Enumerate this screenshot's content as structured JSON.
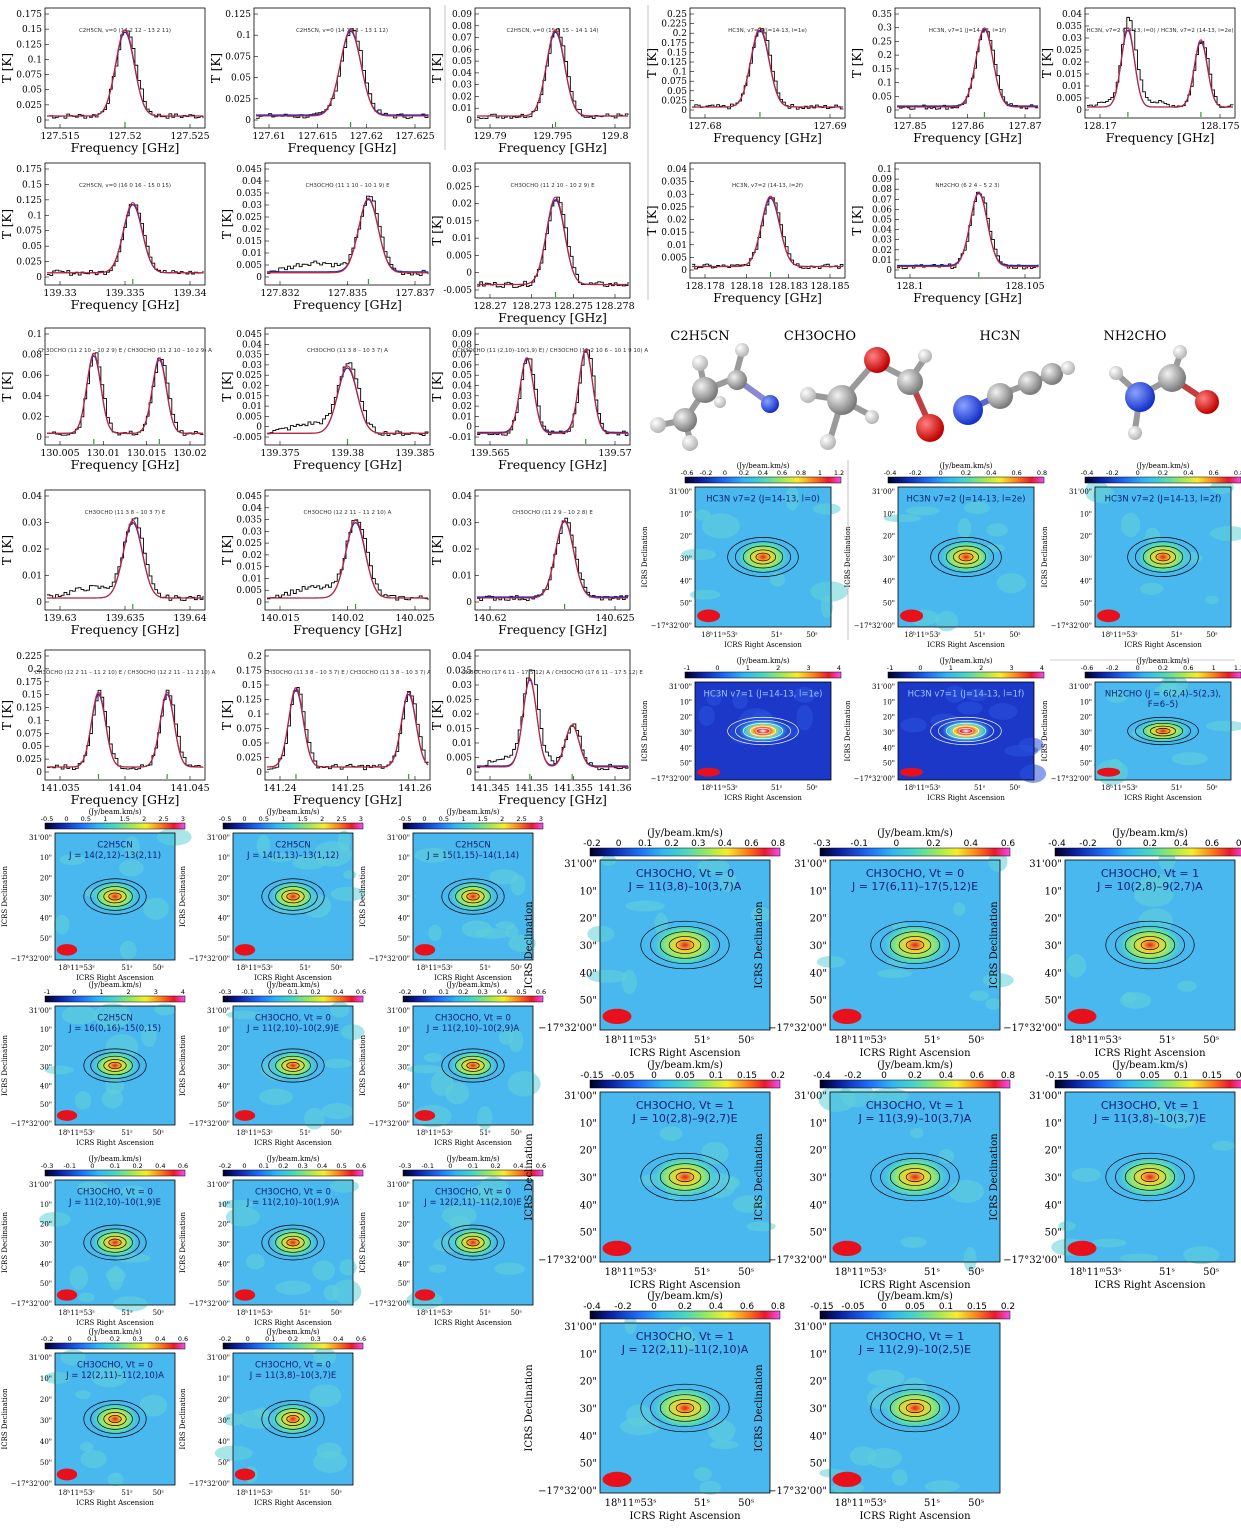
{
  "axes": {
    "freq_label": "Frequency [GHz]",
    "temp_label": "T [K]",
    "dec_label": "ICRS Declination",
    "ra_label": "ICRS Right Ascension",
    "cbar_unit": "(Jy/beam.km/s)",
    "dec_ticks": [
      "31'00\"",
      "10\"",
      "20\"",
      "30\"",
      "40\"",
      "50\"",
      "−17°32'00\""
    ],
    "ra_ticks": [
      "18ʰ11ᵐ53ˢ",
      "51ˢ",
      "50ˢ"
    ]
  },
  "molecules": [
    {
      "label": "C2H5CN",
      "icon": "c2h5cn-ball-and-stick"
    },
    {
      "label": "CH3OCHO",
      "icon": "ch3ocho-ball-and-stick"
    },
    {
      "label": "HC3N",
      "icon": "hc3n-ball-and-stick"
    },
    {
      "label": "NH2CHO",
      "icon": "nh2cho-ball-and-stick"
    }
  ],
  "colors": {
    "observed": "#000000",
    "lte_model": "#d42020",
    "fit": "#1a2bd4",
    "marker": "#2ca02c",
    "beam": "#e8101a"
  },
  "spectra": [
    {
      "title": "C2H5CN, v=0 (14 2 12 – 13 2 11)",
      "yticks": [
        "0.175",
        "0.15",
        "0.125",
        "0.1",
        "0.075",
        "0.05",
        "0.025",
        "0"
      ],
      "xticks": [
        "127.515",
        "127.52",
        "127.525"
      ]
    },
    {
      "title": "C2H5CN, v=0 (14 1 13 – 13 1 12)",
      "yticks": [
        "0.125",
        "0.1",
        "0.075",
        "0.05",
        "0.025",
        "0"
      ],
      "xticks": [
        "127.61",
        "127.615",
        "127.62",
        "127.625"
      ]
    },
    {
      "title": "C2H5CN, v=0 (15 1 15 – 14 1 14)",
      "yticks": [
        "0.09",
        "0.08",
        "0.07",
        "0.06",
        "0.05",
        "0.04",
        "0.03",
        "0.02",
        "0.01",
        "0"
      ],
      "xticks": [
        "129.79",
        "129.795",
        "129.8"
      ]
    },
    {
      "title": "HC3N, v7=1 (J=14-13, l=1e)",
      "yticks": [
        "0.25",
        "0.225",
        "0.2",
        "0.175",
        "0.15",
        "0.125",
        "0.1",
        "0.075",
        "0.05",
        "0.025",
        "0"
      ],
      "xticks": [
        "127.68",
        "127.69"
      ]
    },
    {
      "title": "HC3N, v7=1 (J=14-13, l=1f)",
      "yticks": [
        "0.35",
        "0.3",
        "0.25",
        "0.2",
        "0.15",
        "0.1",
        "0.05",
        "0"
      ],
      "xticks": [
        "127.85",
        "127.86",
        "127.87"
      ]
    },
    {
      "title": "HC3N, v7=2 (14-13, l=0) / HC3N, v7=2 (14-13, l=2e)",
      "yticks": [
        "0.04",
        "0.035",
        "0.03",
        "0.025",
        "0.02",
        "0.015",
        "0.01",
        "0.005",
        "0"
      ],
      "xticks": [
        "128.17",
        "128.175"
      ]
    },
    {
      "title": "C2H5CN, v=0 (16 0 16 – 15 0 15)",
      "yticks": [
        "0.175",
        "0.15",
        "0.125",
        "0.1",
        "0.075",
        "0.05",
        "0.025",
        "0"
      ],
      "xticks": [
        "139.33",
        "139.335",
        "139.34"
      ]
    },
    {
      "title": "CH3OCHO (11 1 10 – 10 1 9) E",
      "yticks": [
        "0.045",
        "0.04",
        "0.035",
        "0.03",
        "0.025",
        "0.02",
        "0.015",
        "0.01",
        "0.005",
        "0"
      ],
      "xticks": [
        "127.832",
        "127.835",
        "127.837"
      ]
    },
    {
      "title": "CH3OCHO (11 2 10 – 10 2 9) E",
      "yticks": [
        "0.03",
        "0.025",
        "0.02",
        "0.015",
        "0.01",
        "0.005",
        "0",
        "-0.005"
      ],
      "xticks": [
        "128.27",
        "128.273",
        "128.275",
        "128.278"
      ]
    },
    {
      "title": "HC3N, v7=2 (14-13, l=2f)",
      "yticks": [
        "0.04",
        "0.035",
        "0.03",
        "0.025",
        "0.02",
        "0.015",
        "0.01",
        "0.005",
        "0"
      ],
      "xticks": [
        "128.178",
        "128.18",
        "128.183",
        "128.185"
      ]
    },
    {
      "title": "NH2CHO (6 2 4 – 5 2 3)",
      "yticks": [
        "0.1",
        "0.09",
        "0.08",
        "0.07",
        "0.06",
        "0.05",
        "0.04",
        "0.03",
        "0.02",
        "0.01",
        "0"
      ],
      "xticks": [
        "128.1",
        "128.105"
      ]
    },
    {
      "title": "CH3OCHO (11 2 10 – 10 2 9) E / CH3OCHO (11 2 10 – 10 2 9) A",
      "yticks": [
        "0.1",
        "0.08",
        "0.06",
        "0.04",
        "0.02",
        "0"
      ],
      "xticks": [
        "130.005",
        "130.01",
        "130.015",
        "130.02"
      ]
    },
    {
      "title": "CH3OCHO (11 3 8 – 10 3 7) A",
      "yticks": [
        "0.045",
        "0.04",
        "0.035",
        "0.03",
        "0.025",
        "0.02",
        "0.015",
        "0.01",
        "0.005",
        "0",
        "-0.005"
      ],
      "xticks": [
        "139.375",
        "139.38",
        "139.385"
      ]
    },
    {
      "title": "CH3OCHO (11 (2,10)–10(1,9) E) / CH3OCHO (11 2 10 6 – 10 1 9 10) A",
      "yticks": [
        "0.09",
        "0.08",
        "0.07",
        "0.06",
        "0.05",
        "0.04",
        "0.03",
        "0.02",
        "0.01",
        "0",
        "-0.01"
      ],
      "xticks": [
        "139.565",
        "139.57"
      ]
    },
    {
      "title": "CH3OCHO (11 3 8 – 10 3 7) E",
      "yticks": [
        "0.04",
        "0.03",
        "0.02",
        "0.01",
        "0"
      ],
      "xticks": [
        "139.63",
        "139.635",
        "139.64"
      ]
    },
    {
      "title": "CH3OCHO (12 2 11 – 11 2 10) A",
      "yticks": [
        "0.045",
        "0.04",
        "0.035",
        "0.03",
        "0.025",
        "0.02",
        "0.015",
        "0.01",
        "0.005",
        "0"
      ],
      "xticks": [
        "140.015",
        "140.02",
        "140.025"
      ]
    },
    {
      "title": "CH3OCHO (11 2 9 – 10 2 8) E",
      "yticks": [
        "0.04",
        "0.03",
        "0.02",
        "0.01",
        "0"
      ],
      "xticks": [
        "140.62",
        "140.625"
      ]
    },
    {
      "title": "CH3OCHO (12 2 11 – 11 2 10) E / CH3OCHO (12 2 11 – 11 2 10) A",
      "yticks": [
        "0.225",
        "0.2",
        "0.175",
        "0.15",
        "0.125",
        "0.1",
        "0.075",
        "0.05",
        "0.025",
        "0"
      ],
      "xticks": [
        "141.035",
        "141.04",
        "141.045"
      ]
    },
    {
      "title": "CH3OCHO (11 3 8 – 10 3 7) E / CH3OCHO (11 3 8 – 10 3 7) A",
      "yticks": [
        "0.2",
        "0.175",
        "0.15",
        "0.125",
        "0.1",
        "0.075",
        "0.05",
        "0.025",
        "0"
      ],
      "xticks": [
        "141.24",
        "141.25",
        "141.26"
      ]
    },
    {
      "title": "CH3OCHO (17 6 11 – 17 5 12) A / CH3OCHO (17 6 11 – 17 5 12) E",
      "yticks": [
        "0.04",
        "0.035",
        "0.03",
        "0.025",
        "0.02",
        "0.015",
        "0.01",
        "0.005",
        "0"
      ],
      "xticks": [
        "141.345",
        "141.35",
        "141.355",
        "141.36"
      ]
    }
  ],
  "maps": [
    {
      "l1": "HC3N v7=2 (J=14-13, l=0)",
      "l2": "",
      "cbar": [
        "-0.6",
        "-0.2",
        "0",
        "0.2",
        "0.4",
        "0.6",
        "0.8",
        "1",
        "1.2"
      ],
      "bg": "light"
    },
    {
      "l1": "HC3N v7=2 (J=14-13, l=2e)",
      "l2": "",
      "cbar": [
        "-0.4",
        "-0.2",
        "0",
        "0.2",
        "0.4",
        "0.6",
        "0.8"
      ],
      "bg": "light"
    },
    {
      "l1": "HC3N v7=2 (J=14-13, l=2f)",
      "l2": "",
      "cbar": [
        "-0.4",
        "-0.2",
        "0",
        "0.2",
        "0.4",
        "0.6",
        "0.8"
      ],
      "bg": "light"
    },
    {
      "l1": "HC3N v7=1 (J=14-13, l=1e)",
      "l2": "",
      "cbar": [
        "-1",
        "0",
        "1",
        "2",
        "3",
        "4"
      ],
      "bg": "dark"
    },
    {
      "l1": "HC3N v7=1 (J=14-13, l=1f)",
      "l2": "",
      "cbar": [
        "-1",
        "0",
        "1",
        "2",
        "3",
        "4"
      ],
      "bg": "dark"
    },
    {
      "l1": "NH2CHO (J = 6(2,4)–5(2,3),",
      "l2": "F=6–5)",
      "cbar": [
        "-0.6",
        "-0.2",
        "0",
        "0.2",
        "0.6",
        "1",
        "1.2"
      ],
      "bg": "light"
    },
    {
      "l1": "C2H5CN",
      "l2": "J = 14(2,12)–13(2,11)",
      "cbar": [
        "-0.5",
        "0",
        "0.5",
        "1",
        "1.5",
        "2",
        "2.5",
        "3"
      ],
      "bg": "light"
    },
    {
      "l1": "C2H5CN",
      "l2": "J = 14(1,13)–13(1,12)",
      "cbar": [
        "-0.5",
        "0",
        "0.5",
        "1",
        "1.5",
        "2",
        "2.5",
        "3"
      ],
      "bg": "light"
    },
    {
      "l1": "C2H5CN",
      "l2": "J = 15(1,15)–14(1,14)",
      "cbar": [
        "-0.5",
        "0",
        "0.5",
        "1",
        "1.5",
        "2",
        "2.5",
        "3"
      ],
      "bg": "light"
    },
    {
      "l1": "C2H5CN",
      "l2": "J = 16(0,16)–15(0,15)",
      "cbar": [
        "-1",
        "0",
        "1",
        "2",
        "3",
        "4"
      ],
      "bg": "light"
    },
    {
      "l1": "CH3OCHO, Vt = 0",
      "l2": "J = 11(2,10)–10(2,9)E",
      "cbar": [
        "-0.3",
        "-0.1",
        "0",
        "0.1",
        "0.2",
        "0.4",
        "0.6"
      ],
      "bg": "light"
    },
    {
      "l1": "CH3OCHO, Vt = 0",
      "l2": "J = 11(2,10)–10(2,9)A",
      "cbar": [
        "-0.2",
        "0",
        "0.1",
        "0.2",
        "0.3",
        "0.4",
        "0.5",
        "0.6"
      ],
      "bg": "light"
    },
    {
      "l1": "CH3OCHO, Vt = 0",
      "l2": "J = 11(2,10)–10(1,9)E",
      "cbar": [
        "-0.3",
        "-0.1",
        "0",
        "0.1",
        "0.2",
        "0.4",
        "0.6"
      ],
      "bg": "light"
    },
    {
      "l1": "CH3OCHO, Vt = 0",
      "l2": "J = 11(2,10)–10(1,9)A",
      "cbar": [
        "-0.2",
        "0",
        "0.1",
        "0.2",
        "0.3",
        "0.4",
        "0.5",
        "0.6"
      ],
      "bg": "light"
    },
    {
      "l1": "CH3OCHO, Vt = 0",
      "l2": "J = 12(2,11)–11(2,10)E",
      "cbar": [
        "-0.3",
        "-0.1",
        "0",
        "0.1",
        "0.2",
        "0.4",
        "0.6"
      ],
      "bg": "light"
    },
    {
      "l1": "CH3OCHO, Vt = 0",
      "l2": "J = 12(2,11)–11(2,10)A",
      "cbar": [
        "-0.2",
        "0",
        "0.1",
        "0.2",
        "0.3",
        "0.4",
        "0.6"
      ],
      "bg": "light"
    },
    {
      "l1": "CH3OCHO, Vt = 0",
      "l2": "J = 11(3,8)–10(3,7)E",
      "cbar": [
        "-0.2",
        "0",
        "0.1",
        "0.2",
        "0.3",
        "0.4",
        "0.6"
      ],
      "bg": "light"
    },
    {
      "l1": "CH3OCHO, Vt = 0",
      "l2": "J = 11(3,8)–10(3,7)A",
      "cbar": [
        "-0.2",
        "0",
        "0.1",
        "0.2",
        "0.3",
        "0.4",
        "0.6",
        "0.8"
      ],
      "bg": "light"
    },
    {
      "l1": "CH3OCHO, Vt = 0",
      "l2": "J = 17(6,11)–17(5,12)E",
      "cbar": [
        "-0.3",
        "-0.1",
        "0",
        "0.2",
        "0.4",
        "0.6"
      ],
      "bg": "light"
    },
    {
      "l1": "CH3OCHO, Vt = 1",
      "l2": "J = 10(2,8)–9(2,7)A",
      "cbar": [
        "-0.4",
        "-0.2",
        "0",
        "0.2",
        "0.4",
        "0.6",
        "0.8"
      ],
      "bg": "light"
    },
    {
      "l1": "CH3OCHO, Vt = 1",
      "l2": "J = 10(2,8)–9(2,7)E",
      "cbar": [
        "-0.15",
        "-0.05",
        "0",
        "0.05",
        "0.1",
        "0.15",
        "0.2"
      ],
      "bg": "light"
    },
    {
      "l1": "CH3OCHO, Vt = 1",
      "l2": "J = 11(3,9)–10(3,7)A",
      "cbar": [
        "-0.4",
        "-0.2",
        "0",
        "0.2",
        "0.4",
        "0.6",
        "0.8"
      ],
      "bg": "light"
    },
    {
      "l1": "CH3OCHO, Vt = 1",
      "l2": "J = 11(3,8)–10(3,7)E",
      "cbar": [
        "-0.15",
        "-0.05",
        "0",
        "0.05",
        "0.1",
        "0.15",
        "0.2"
      ],
      "bg": "light"
    },
    {
      "l1": "CH3OCHO, Vt = 1",
      "l2": "J = 12(2,11)–11(2,10)A",
      "cbar": [
        "-0.4",
        "-0.2",
        "0",
        "0.2",
        "0.4",
        "0.6",
        "0.8"
      ],
      "bg": "light"
    },
    {
      "l1": "CH3OCHO, Vt = 1",
      "l2": "J = 11(2,9)–10(2,5)E",
      "cbar": [
        "-0.15",
        "-0.05",
        "0",
        "0.05",
        "0.1",
        "0.15",
        "0.2"
      ],
      "bg": "light"
    }
  ]
}
